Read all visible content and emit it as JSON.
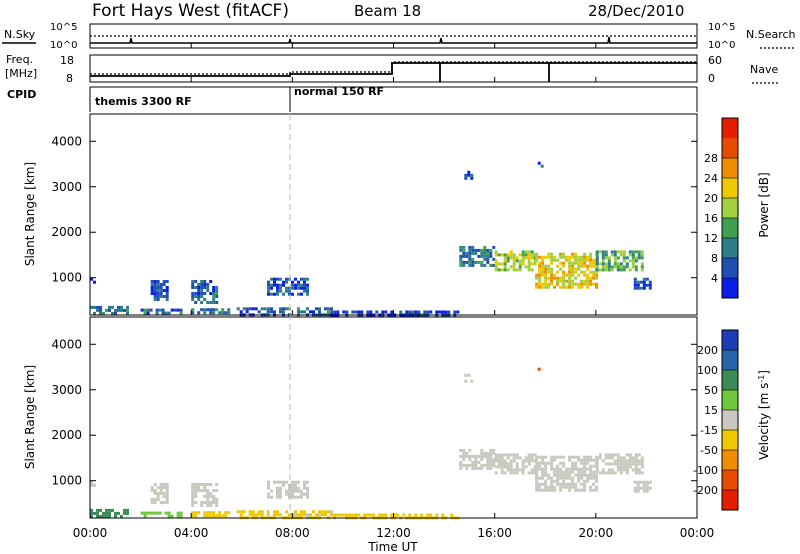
{
  "header": {
    "station": "Fort Hays West (fitACF)",
    "beam": "Beam 18",
    "date": "28/Dec/2010"
  },
  "top_panels": {
    "nsky_label": "N.Sky",
    "nsearch_label": "N.Search",
    "noise_ticks": [
      "10^5",
      "10^0"
    ],
    "freq_label": "Freq.",
    "freq_unit": "[MHz]",
    "freq_ticks": [
      "18",
      "8"
    ],
    "nave_label": "Nave",
    "nave_ticks": [
      "60",
      "0"
    ],
    "cpid_label": "CPID",
    "cpid_modes": [
      {
        "name": "themis 3300 RF",
        "start_hour": 0
      },
      {
        "name": "normal 150 RF",
        "start_hour": 8
      }
    ]
  },
  "axes": {
    "xlabel": "Time UT",
    "x_ticks": [
      "00:00",
      "04:00",
      "08:00",
      "12:00",
      "16:00",
      "20:00",
      "00:00"
    ],
    "ylabel": "Slant Range [km]",
    "y_ticks": [
      "1000",
      "2000",
      "3000",
      "4000"
    ]
  },
  "power_colorbar": {
    "label": "Power [dB]",
    "ticks": [
      "4",
      "8",
      "12",
      "16",
      "20",
      "24",
      "28"
    ],
    "colors": [
      "#0a1ee6",
      "#1e50b4",
      "#2e7e8a",
      "#3fa050",
      "#a0d040",
      "#f0c800",
      "#f08c00",
      "#e64b00",
      "#e61e00"
    ]
  },
  "velocity_colorbar": {
    "label_main": "Velocity [m s",
    "label_sup": "-1",
    "label_end": "]",
    "ticks": [
      "200",
      "100",
      "50",
      "15",
      "-15",
      "-50",
      "-100",
      "-200"
    ],
    "colors": [
      "#1e3cb4",
      "#2864aa",
      "#3c8c5a",
      "#6ec83c",
      "#c8c8be",
      "#f0c800",
      "#f08c00",
      "#e64b00",
      "#e61e00"
    ]
  },
  "chart_data": {
    "type": "heatmap",
    "x_range_hours": [
      0,
      24
    ],
    "y_range_km": [
      180,
      4600
    ],
    "regions": [
      {
        "t0": 0.0,
        "t1": 1.5,
        "r0": 200,
        "r1": 380,
        "power": 10,
        "vel": 60
      },
      {
        "t0": 0.0,
        "t1": 0.2,
        "r0": 900,
        "r1": 1000,
        "power": 4,
        "vel": 0
      },
      {
        "t0": 2.4,
        "t1": 3.1,
        "r0": 550,
        "r1": 950,
        "power": 6,
        "vel": 0
      },
      {
        "t0": 2.0,
        "t1": 3.6,
        "r0": 200,
        "r1": 320,
        "power": 8,
        "vel": 40
      },
      {
        "t0": 4.0,
        "t1": 5.0,
        "r0": 450,
        "r1": 950,
        "power": 8,
        "vel": 0
      },
      {
        "t0": 4.0,
        "t1": 5.5,
        "r0": 200,
        "r1": 330,
        "power": 10,
        "vel": -40
      },
      {
        "t0": 5.8,
        "t1": 7.0,
        "r0": 200,
        "r1": 350,
        "power": 6,
        "vel": -30
      },
      {
        "t0": 7.0,
        "t1": 8.6,
        "r0": 650,
        "r1": 1000,
        "power": 6,
        "vel": 0
      },
      {
        "t0": 7.0,
        "t1": 9.5,
        "r0": 200,
        "r1": 350,
        "power": 8,
        "vel": -20
      },
      {
        "t0": 9.5,
        "t1": 14.5,
        "r0": 200,
        "r1": 280,
        "power": 4,
        "vel": -25
      },
      {
        "t0": 14.6,
        "t1": 16.0,
        "r0": 1300,
        "r1": 1700,
        "power": 9,
        "vel": 5
      },
      {
        "t0": 16.0,
        "t1": 17.6,
        "r0": 1150,
        "r1": 1600,
        "power": 18,
        "vel": 0
      },
      {
        "t0": 17.6,
        "t1": 20.0,
        "r0": 800,
        "r1": 1550,
        "power": 21,
        "vel": 0
      },
      {
        "t0": 20.0,
        "t1": 21.8,
        "r0": 1150,
        "r1": 1600,
        "power": 14,
        "vel": 0
      },
      {
        "t0": 21.5,
        "t1": 22.1,
        "r0": 800,
        "r1": 1000,
        "power": 6,
        "vel": 0
      },
      {
        "t0": 14.8,
        "t1": 15.1,
        "r0": 3200,
        "r1": 3350,
        "power": 4,
        "vel": 0
      },
      {
        "t0": 17.7,
        "t1": 17.9,
        "r0": 3450,
        "r1": 3550,
        "power": 5,
        "vel": -200
      }
    ]
  }
}
